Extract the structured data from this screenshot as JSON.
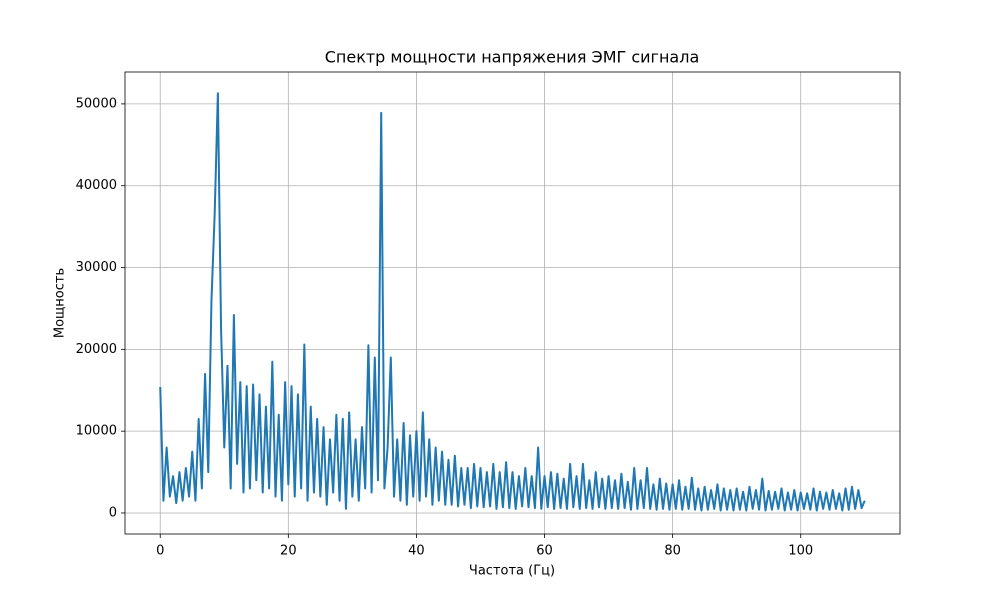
{
  "chart_data": {
    "type": "line",
    "title": "Спектр мощности напряжения ЭМГ сигнала",
    "xlabel": "Частота (Гц)",
    "ylabel": "Мощность",
    "xlim": [
      -5.5,
      115.5
    ],
    "ylim": [
      -2570,
      53900
    ],
    "xticks": [
      0,
      20,
      40,
      60,
      80,
      100
    ],
    "yticks": [
      0,
      10000,
      20000,
      30000,
      40000,
      50000
    ],
    "grid": true,
    "x": [
      0,
      0.5,
      1,
      1.5,
      2,
      2.5,
      3,
      3.5,
      4,
      4.5,
      5,
      5.5,
      6,
      6.5,
      7,
      7.5,
      8,
      8.5,
      9,
      9.5,
      10,
      10.5,
      11,
      11.5,
      12,
      12.5,
      13,
      13.5,
      14,
      14.5,
      15,
      15.5,
      16,
      16.5,
      17,
      17.5,
      18,
      18.5,
      19,
      19.5,
      20,
      20.5,
      21,
      21.5,
      22,
      22.5,
      23,
      23.5,
      24,
      24.5,
      25,
      25.5,
      26,
      26.5,
      27,
      27.5,
      28,
      28.5,
      29,
      29.5,
      30,
      30.5,
      31,
      31.5,
      32,
      32.5,
      33,
      33.5,
      34,
      34.5,
      35,
      35.5,
      36,
      36.5,
      37,
      37.5,
      38,
      38.5,
      39,
      39.5,
      40,
      40.5,
      41,
      41.5,
      42,
      42.5,
      43,
      43.5,
      44,
      44.5,
      45,
      45.5,
      46,
      46.5,
      47,
      47.5,
      48,
      48.5,
      49,
      49.5,
      50,
      50.5,
      51,
      51.5,
      52,
      52.5,
      53,
      53.5,
      54,
      54.5,
      55,
      55.5,
      56,
      56.5,
      57,
      57.5,
      58,
      58.5,
      59,
      59.5,
      60,
      60.5,
      61,
      61.5,
      62,
      62.5,
      63,
      63.5,
      64,
      64.5,
      65,
      65.5,
      66,
      66.5,
      67,
      67.5,
      68,
      68.5,
      69,
      69.5,
      70,
      70.5,
      71,
      71.5,
      72,
      72.5,
      73,
      73.5,
      74,
      74.5,
      75,
      75.5,
      76,
      76.5,
      77,
      77.5,
      78,
      78.5,
      79,
      79.5,
      80,
      80.5,
      81,
      81.5,
      82,
      82.5,
      83,
      83.5,
      84,
      84.5,
      85,
      85.5,
      86,
      86.5,
      87,
      87.5,
      88,
      88.5,
      89,
      89.5,
      90,
      90.5,
      91,
      91.5,
      92,
      92.5,
      93,
      93.5,
      94,
      94.5,
      95,
      95.5,
      96,
      96.5,
      97,
      97.5,
      98,
      98.5,
      99,
      99.5,
      100,
      100.5,
      101,
      101.5,
      102,
      102.5,
      103,
      103.5,
      104,
      104.5,
      105,
      105.5,
      106,
      106.5,
      107,
      107.5,
      108,
      108.5,
      109,
      109.5,
      110
    ],
    "series": [
      {
        "color": "#1f77b4",
        "values": [
          15400,
          1500,
          8000,
          2000,
          4500,
          1200,
          5000,
          1500,
          5500,
          2000,
          7500,
          1500,
          11500,
          3000,
          17000,
          5000,
          26000,
          36500,
          51300,
          22500,
          8000,
          18000,
          3000,
          24200,
          6000,
          16000,
          2500,
          15500,
          3000,
          15700,
          4000,
          14500,
          2500,
          13000,
          3000,
          18500,
          2000,
          12000,
          1500,
          16000,
          3500,
          15500,
          2000,
          14500,
          3000,
          20600,
          1500,
          13000,
          2500,
          11500,
          2000,
          10500,
          1000,
          9000,
          2500,
          12000,
          1500,
          11500,
          500,
          12300,
          2000,
          9000,
          1500,
          10500,
          3000,
          20500,
          2500,
          19000,
          4000,
          48900,
          3000,
          8000,
          19000,
          2000,
          9000,
          1500,
          11000,
          1000,
          9500,
          2000,
          10000,
          1500,
          12300,
          2000,
          9000,
          1000,
          8000,
          1500,
          7500,
          1000,
          6500,
          1000,
          7000,
          800,
          5500,
          1000,
          5500,
          600,
          6000,
          800,
          5500,
          700,
          5000,
          800,
          6000,
          500,
          5000,
          700,
          6200,
          600,
          5000,
          500,
          4500,
          800,
          5500,
          700,
          4500,
          600,
          8000,
          500,
          4500,
          700,
          5000,
          500,
          4800,
          600,
          4200,
          500,
          6000,
          700,
          4500,
          500,
          6000,
          600,
          4000,
          500,
          5000,
          700,
          4200,
          500,
          4500,
          600,
          4000,
          500,
          4800,
          600,
          3800,
          400,
          5500,
          500,
          4000,
          600,
          5500,
          500,
          3500,
          400,
          4200,
          500,
          3600,
          400,
          3500,
          500,
          4000,
          400,
          3200,
          500,
          4300,
          400,
          3000,
          300,
          3200,
          400,
          2800,
          500,
          3500,
          300,
          3000,
          400,
          2800,
          300,
          3000,
          400,
          2600,
          300,
          3200,
          500,
          2800,
          400,
          4200,
          300,
          2700,
          400,
          2600,
          500,
          3000,
          300,
          2500,
          400,
          2800,
          300,
          2500,
          500,
          2400,
          400,
          3000,
          300,
          2600,
          500,
          2500,
          400,
          2800,
          500,
          2400,
          300,
          3000,
          400,
          3200,
          500,
          2800,
          600,
          1500
        ]
      }
    ]
  }
}
